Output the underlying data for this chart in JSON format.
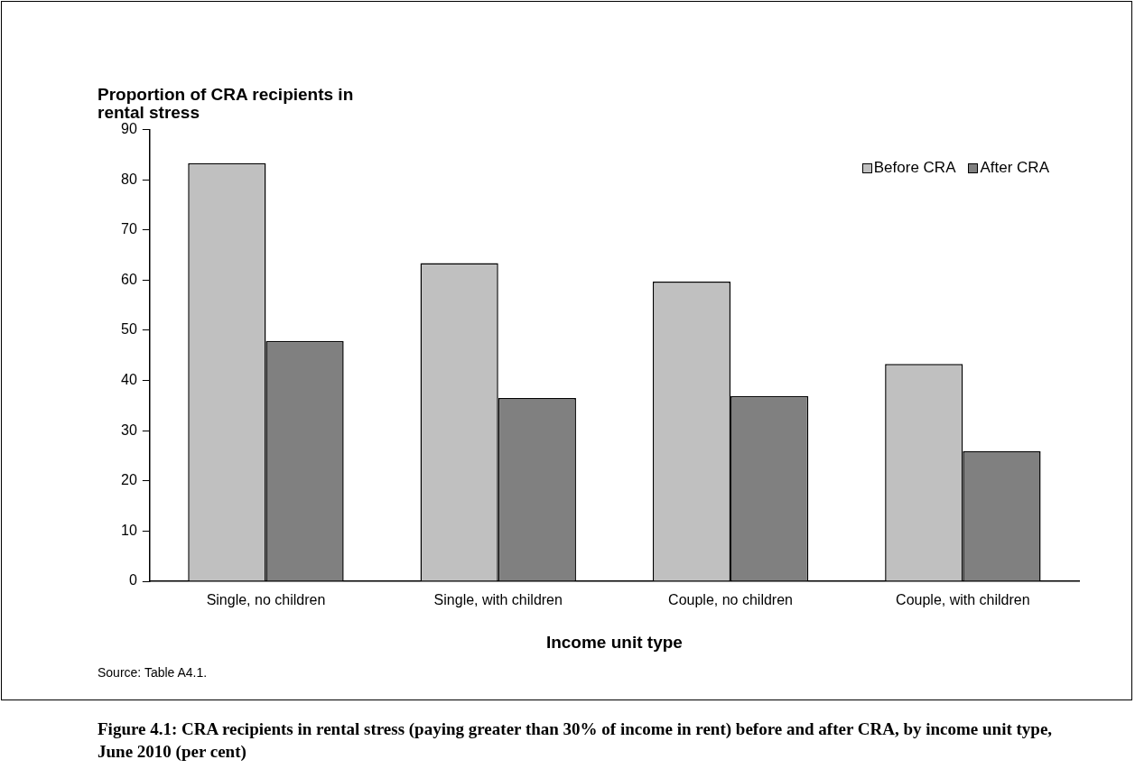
{
  "chart_data": {
    "type": "bar",
    "ylabel": "Proportion of CRA recipients in rental stress",
    "xlabel": "Income unit type",
    "title": "Figure 4.1: CRA recipients in rental stress (paying greater than 30% of income in rent) before and after CRA, by income unit type, June 2010 (per cent)",
    "annotations": [
      "Source: Table A4.1."
    ],
    "categories": [
      "Single, no children",
      "Single, with children",
      "Couple, no children",
      "Couple, with children"
    ],
    "series": [
      {
        "name": "Before CRA",
        "color": "#c0c0c0",
        "values": [
          83.3,
          63.4,
          59.7,
          43.3
        ]
      },
      {
        "name": "After CRA",
        "color": "#808080",
        "values": [
          47.9,
          36.5,
          36.9,
          25.9
        ]
      }
    ],
    "ylim": [
      0,
      90
    ],
    "yticks": [
      0,
      10,
      20,
      30,
      40,
      50,
      60,
      70,
      80,
      90
    ],
    "grid": false,
    "legend": "top right"
  }
}
